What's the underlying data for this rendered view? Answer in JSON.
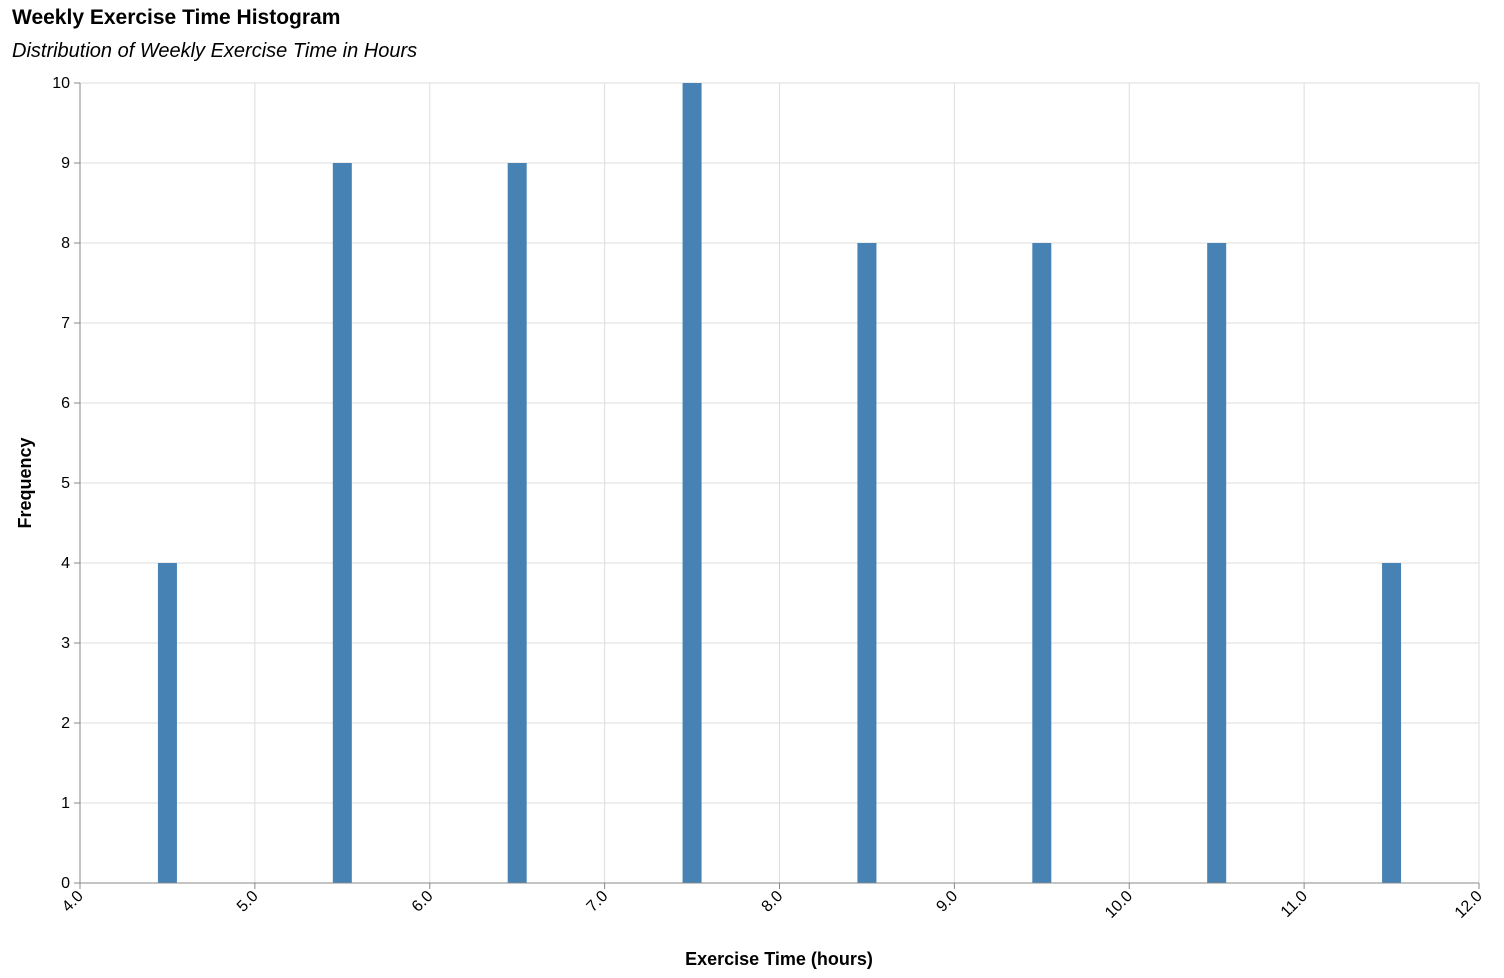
{
  "chart_data": {
    "type": "bar",
    "title": "Weekly Exercise Time Histogram",
    "subtitle": "Distribution of Weekly Exercise Time in Hours",
    "xlabel": "Exercise Time (hours)",
    "ylabel": "Frequency",
    "xlim": [
      4,
      12
    ],
    "ylim": [
      0,
      10
    ],
    "x_ticks": [
      "4.0",
      "5.0",
      "6.0",
      "7.0",
      "8.0",
      "9.0",
      "10.0",
      "11.0",
      "12.0"
    ],
    "y_ticks": [
      "0",
      "1",
      "2",
      "3",
      "4",
      "5",
      "6",
      "7",
      "8",
      "9",
      "10"
    ],
    "bins": [
      4.5,
      5.5,
      6.5,
      7.5,
      8.5,
      9.5,
      10.5,
      11.5
    ],
    "values": [
      4,
      9,
      9,
      10,
      8,
      8,
      8,
      4
    ],
    "grid": true,
    "bar_color": "#4682b4"
  }
}
